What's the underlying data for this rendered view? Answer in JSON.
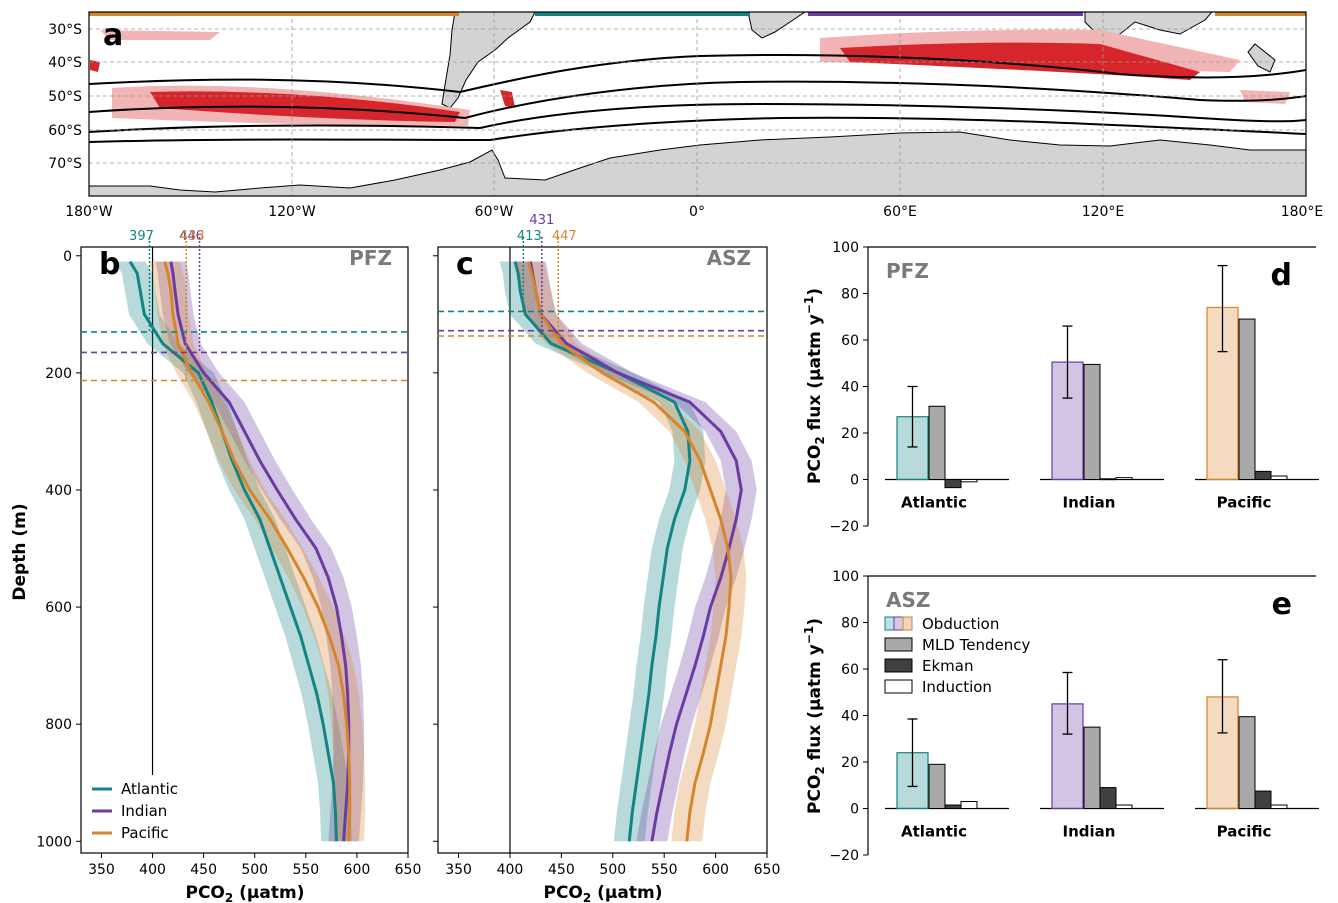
{
  "colors": {
    "atlantic": "#138484",
    "indian": "#6a3ba3",
    "pacific": "#d6852f",
    "land": "#d3d3d3",
    "hotspot_strong": "#d7262b",
    "hotspot_weak": "#f2b5b6",
    "mld": "#a9a9a9",
    "ekman": "#404040",
    "induction": "#ffffff"
  },
  "map": {
    "panel_label": "a",
    "lat_ticks": [
      "30°S",
      "40°S",
      "50°S",
      "60°S",
      "70°S"
    ],
    "lon_ticks": [
      "180°W",
      "120°W",
      "60°W",
      "0°",
      "60°E",
      "120°E",
      "180°E"
    ]
  },
  "profiles": {
    "ylabel": "Depth (m)",
    "xlabel": "PCO",
    "xlabel_sub": "2",
    "xlabel_unit": " (μatm)",
    "xticks": [
      "350",
      "400",
      "450",
      "500",
      "550",
      "600",
      "650"
    ],
    "yticks": [
      "0",
      "200",
      "400",
      "600",
      "800",
      "1000"
    ],
    "legend": [
      "Atlantic",
      "Indian",
      "Pacific"
    ],
    "reference_pco2": 400
  },
  "flux": {
    "ylabel": "PCO",
    "ylabel_sub": "2",
    "ylabel_rest": " flux (μatm y",
    "ylabel_sup": "−1",
    "ylabel_end": ")",
    "yticks": [
      "100",
      "80",
      "60",
      "40",
      "20",
      "0",
      "−20"
    ],
    "legend": [
      "Obduction",
      "MLD Tendency",
      "Ekman",
      "Induction"
    ]
  },
  "chart_data": [
    {
      "type": "line",
      "panel": "b",
      "zone_label": "PFZ",
      "xlim": [
        330,
        650
      ],
      "ylim": [
        1020,
        -15
      ],
      "y_inverted": true,
      "depth": [
        10,
        30,
        60,
        100,
        150,
        200,
        250,
        300,
        350,
        400,
        450,
        500,
        550,
        600,
        650,
        700,
        750,
        800,
        850,
        900,
        950,
        1000
      ],
      "series": [
        {
          "name": "Atlantic",
          "pco2": [
            378,
            385,
            388,
            392,
            410,
            445,
            458,
            468,
            478,
            490,
            505,
            515,
            525,
            535,
            545,
            553,
            561,
            567,
            572,
            577,
            579,
            580
          ],
          "spread": 15,
          "surface_label": "397",
          "ml_depth": 130
        },
        {
          "name": "Indian",
          "pco2": [
            418,
            420,
            422,
            425,
            432,
            450,
            475,
            490,
            505,
            522,
            540,
            560,
            572,
            580,
            585,
            589,
            591,
            592,
            592,
            591,
            589,
            587
          ],
          "spread": 15,
          "surface_label": "446",
          "ml_depth": 165
        },
        {
          "name": "Pacific",
          "pco2": [
            412,
            415,
            418,
            420,
            425,
            438,
            455,
            468,
            480,
            495,
            515,
            532,
            548,
            562,
            573,
            582,
            587,
            590,
            592,
            593,
            593,
            592
          ],
          "spread": 15,
          "surface_label": "433",
          "ml_depth": 213
        }
      ]
    },
    {
      "type": "line",
      "panel": "c",
      "zone_label": "ASZ",
      "xlim": [
        330,
        650
      ],
      "ylim": [
        1020,
        -15
      ],
      "y_inverted": true,
      "depth": [
        10,
        30,
        60,
        100,
        150,
        200,
        250,
        300,
        350,
        400,
        450,
        500,
        550,
        600,
        650,
        700,
        750,
        800,
        850,
        900,
        950,
        1000
      ],
      "series": [
        {
          "name": "Atlantic",
          "pco2": [
            405,
            408,
            410,
            415,
            440,
            505,
            560,
            573,
            575,
            570,
            560,
            553,
            549,
            545,
            542,
            538,
            535,
            531,
            527,
            523,
            519,
            516
          ],
          "spread": 15,
          "surface_label": "413",
          "ml_depth": 95
        },
        {
          "name": "Indian",
          "pco2": [
            420,
            422,
            425,
            430,
            455,
            505,
            575,
            605,
            620,
            625,
            620,
            613,
            605,
            595,
            588,
            580,
            571,
            562,
            555,
            549,
            543,
            538
          ],
          "spread": 15,
          "surface_label": "431",
          "ml_depth": 128
        },
        {
          "name": "Pacific",
          "pco2": [
            418,
            421,
            425,
            430,
            450,
            490,
            540,
            570,
            585,
            595,
            605,
            612,
            615,
            613,
            610,
            605,
            600,
            595,
            588,
            580,
            575,
            572
          ],
          "spread": 15,
          "surface_label": "447",
          "ml_depth": 137
        }
      ]
    },
    {
      "type": "bar",
      "panel": "d",
      "zone_label": "PFZ",
      "categories": [
        "Atlantic",
        "Indian",
        "Pacific"
      ],
      "ylim": [
        -20,
        100
      ],
      "series": [
        {
          "name": "Obduction",
          "values": [
            27,
            50.5,
            74
          ],
          "error": [
            [
              14,
              40
            ],
            [
              35,
              66
            ],
            [
              55,
              92
            ]
          ]
        },
        {
          "name": "MLD Tendency",
          "values": [
            31.5,
            49.5,
            69
          ]
        },
        {
          "name": "Ekman",
          "values": [
            -3.5,
            0.3,
            3.5
          ]
        },
        {
          "name": "Induction",
          "values": [
            -1,
            0.8,
            1.5
          ]
        }
      ]
    },
    {
      "type": "bar",
      "panel": "e",
      "zone_label": "ASZ",
      "categories": [
        "Atlantic",
        "Indian",
        "Pacific"
      ],
      "ylim": [
        -20,
        100
      ],
      "series": [
        {
          "name": "Obduction",
          "values": [
            24,
            45,
            48
          ],
          "error": [
            [
              9.5,
              38.5
            ],
            [
              32,
              58.5
            ],
            [
              32.5,
              64
            ]
          ]
        },
        {
          "name": "MLD Tendency",
          "values": [
            19,
            35,
            39.5
          ]
        },
        {
          "name": "Ekman",
          "values": [
            1.5,
            9,
            7.5
          ]
        },
        {
          "name": "Induction",
          "values": [
            3,
            1.5,
            1.5
          ]
        }
      ]
    }
  ]
}
